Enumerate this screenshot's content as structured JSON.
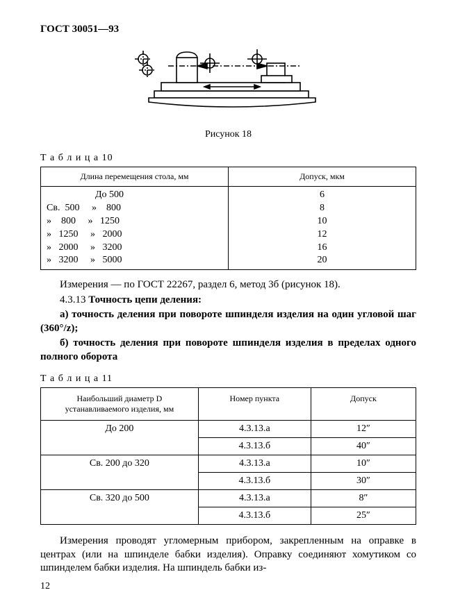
{
  "header": {
    "doc_id": "ГОСТ 30051—93"
  },
  "figure": {
    "caption": "Рисунок 18"
  },
  "table10": {
    "caption": "Т а б л и ц а 10",
    "head_left": "Длина перемещения стола, мм",
    "head_right": "Допуск, мкм",
    "rows": [
      {
        "range": "                    До 500",
        "tol": "6"
      },
      {
        "range": "Св.  500     »    800",
        "tol": "8"
      },
      {
        "range": "»    800     »   1250",
        "tol": "10"
      },
      {
        "range": "»   1250     »   2000",
        "tol": "12"
      },
      {
        "range": "»   2000     »   3200",
        "tol": "16"
      },
      {
        "range": "»   3200     »   5000",
        "tol": "20"
      }
    ]
  },
  "body": {
    "p1": "Измерения — по ГОСТ 22267, раздел 6, метод 3б (рисунок 18).",
    "p2_prefix": "4.3.13 ",
    "p2_bold": "Точность цепи деления:",
    "p3": "а) точность деления при повороте шпинделя изделия на один угло­вой шаг (360°/z);",
    "p4": "б) точность деления при повороте шпинделя изделия в пределах одного полного оборота",
    "p5": "Измерения проводят угломерным прибором, закрепленным на оп­равке в центрах (или на шпинделе бабки изделия). Оправку соединя­ют хомутиком со шпинделем бабки изделия. На шпиндель бабки из-"
  },
  "table11": {
    "caption": "Т а б л и ц а 11",
    "head_diam_l1": "Наибольший диаметр D",
    "head_diam_l2": "устанавливаемого изделия, мм",
    "head_point": "Номер пункта",
    "head_tol": "Допуск",
    "groups": [
      {
        "diam": "До  200",
        "rows": [
          {
            "pt": "4.3.13.а",
            "tol": "12″"
          },
          {
            "pt": "4.3.13.б",
            "tol": "40″"
          }
        ]
      },
      {
        "diam": "Св. 200  до   320",
        "rows": [
          {
            "pt": "4.3.13.а",
            "tol": "10″"
          },
          {
            "pt": "4.3.13.б",
            "tol": "30″"
          }
        ]
      },
      {
        "diam": "Св. 320  до   500",
        "rows": [
          {
            "pt": "4.3.13.а",
            "tol": "8″"
          },
          {
            "pt": "4.3.13.б",
            "tol": "25″"
          }
        ]
      }
    ]
  },
  "pagenum": "12"
}
